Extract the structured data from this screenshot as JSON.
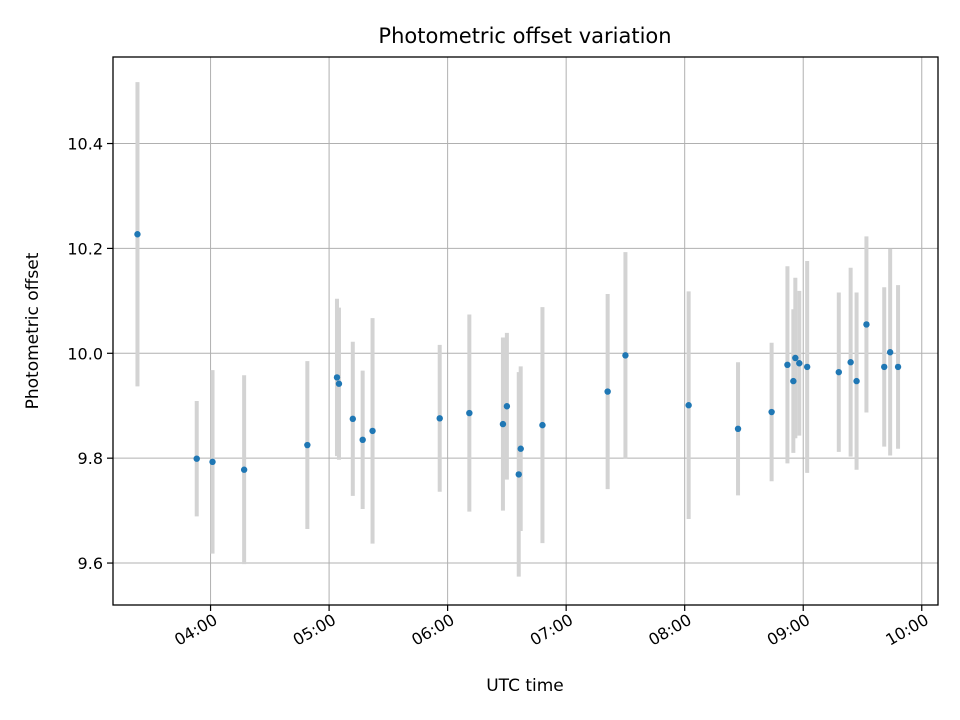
{
  "chart_data": {
    "type": "scatter",
    "title": "Photometric offset variation",
    "xlabel": "UTC time",
    "ylabel": "Photometric offset",
    "x_tick_labels": [
      "04:00",
      "05:00",
      "06:00",
      "07:00",
      "08:00",
      "09:00",
      "10:00"
    ],
    "x_ticks_hours": [
      4,
      5,
      6,
      7,
      8,
      9,
      10
    ],
    "y_ticks": [
      9.6,
      9.8,
      10.0,
      10.2,
      10.4
    ],
    "y_tick_labels": [
      "9.6",
      "9.8",
      "10.0",
      "10.2",
      "10.4"
    ],
    "xlim_hours": [
      3.177,
      10.137
    ],
    "ylim": [
      9.52,
      10.565
    ],
    "grid": true,
    "marker_color": "#1f77b4",
    "errorbar_color": "#d3d3d3",
    "points": [
      {
        "t": "03:23",
        "y": 10.227,
        "err": 0.29
      },
      {
        "t": "03:53",
        "y": 9.799,
        "err": 0.11
      },
      {
        "t": "04:01",
        "y": 9.793,
        "err": 0.175
      },
      {
        "t": "04:17",
        "y": 9.778,
        "err": 0.18
      },
      {
        "t": "04:49",
        "y": 9.825,
        "err": 0.16
      },
      {
        "t": "05:04",
        "y": 9.954,
        "err": 0.15
      },
      {
        "t": "05:05",
        "y": 9.942,
        "err": 0.145
      },
      {
        "t": "05:12",
        "y": 9.875,
        "err": 0.147
      },
      {
        "t": "05:17",
        "y": 9.835,
        "err": 0.132
      },
      {
        "t": "05:22",
        "y": 9.852,
        "err": 0.215
      },
      {
        "t": "05:56",
        "y": 9.876,
        "err": 0.14
      },
      {
        "t": "06:11",
        "y": 9.886,
        "err": 0.188
      },
      {
        "t": "06:28",
        "y": 9.865,
        "err": 0.165
      },
      {
        "t": "06:30",
        "y": 9.899,
        "err": 0.14
      },
      {
        "t": "06:36",
        "y": 9.769,
        "err": 0.195
      },
      {
        "t": "06:37",
        "y": 9.818,
        "err": 0.157
      },
      {
        "t": "06:48",
        "y": 9.863,
        "err": 0.225
      },
      {
        "t": "07:21",
        "y": 9.927,
        "err": 0.186
      },
      {
        "t": "07:30",
        "y": 9.996,
        "err": 0.197
      },
      {
        "t": "08:02",
        "y": 9.901,
        "err": 0.217
      },
      {
        "t": "08:27",
        "y": 9.856,
        "err": 0.127
      },
      {
        "t": "08:44",
        "y": 9.888,
        "err": 0.132
      },
      {
        "t": "08:52",
        "y": 9.978,
        "err": 0.188
      },
      {
        "t": "08:55",
        "y": 9.947,
        "err": 0.137
      },
      {
        "t": "08:56",
        "y": 9.991,
        "err": 0.153
      },
      {
        "t": "08:58",
        "y": 9.981,
        "err": 0.138
      },
      {
        "t": "09:02",
        "y": 9.974,
        "err": 0.202
      },
      {
        "t": "09:18",
        "y": 9.964,
        "err": 0.152
      },
      {
        "t": "09:24",
        "y": 9.983,
        "err": 0.18
      },
      {
        "t": "09:27",
        "y": 9.947,
        "err": 0.169
      },
      {
        "t": "09:32",
        "y": 10.055,
        "err": 0.168
      },
      {
        "t": "09:41",
        "y": 9.974,
        "err": 0.152
      },
      {
        "t": "09:44",
        "y": 10.002,
        "err": 0.197
      },
      {
        "t": "09:48",
        "y": 9.974,
        "err": 0.156
      }
    ]
  }
}
